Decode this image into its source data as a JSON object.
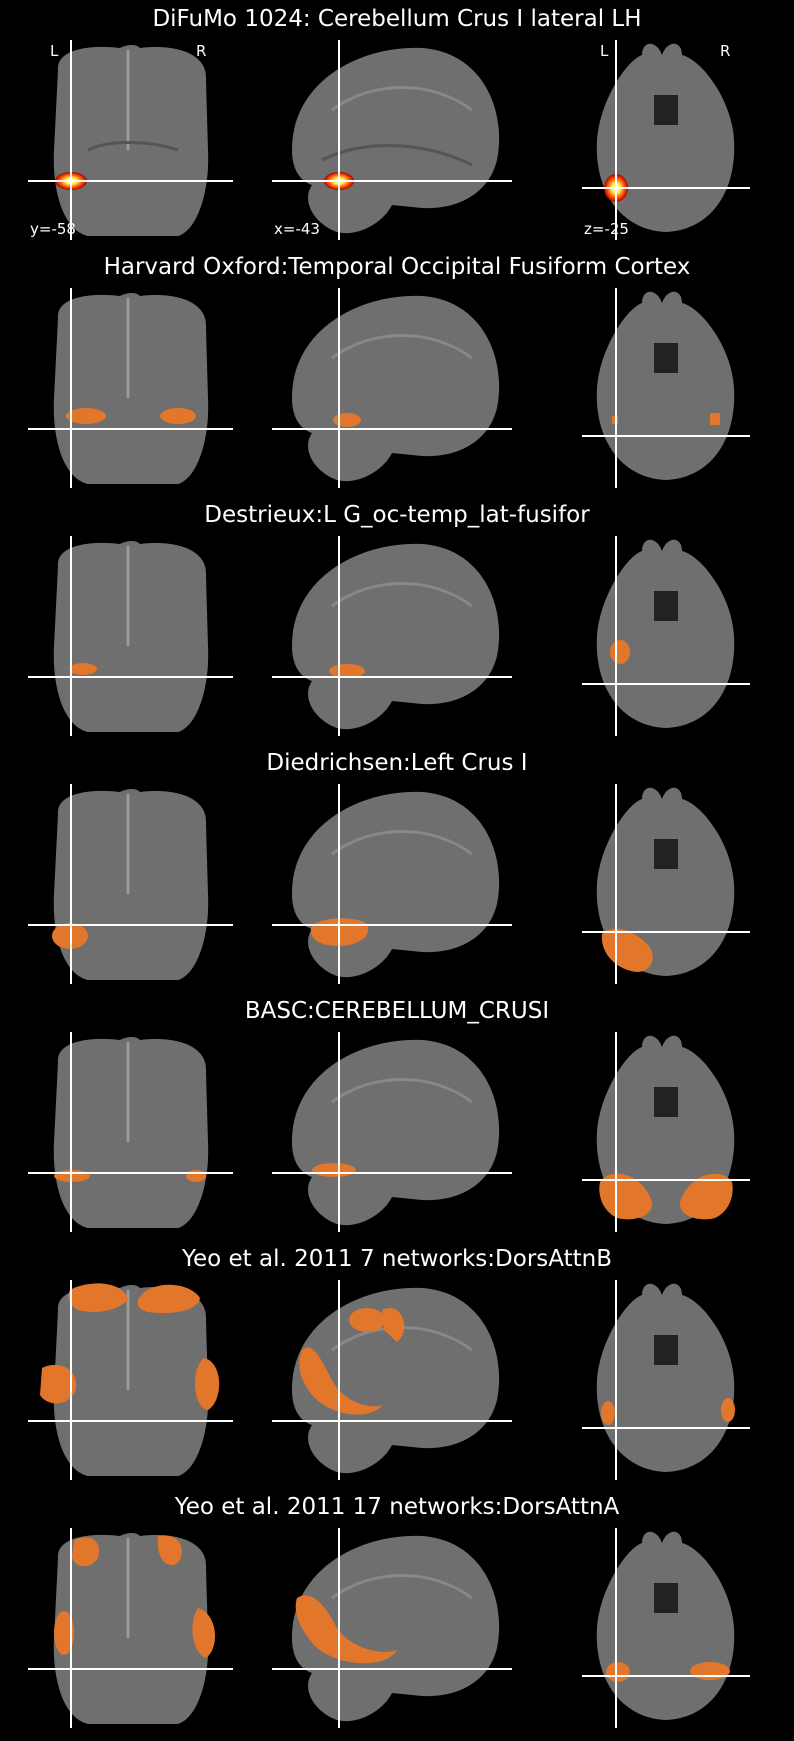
{
  "colors": {
    "background": "#000000",
    "overlay": "#e2762b",
    "crosshair": "#ffffff"
  },
  "labels": {
    "left": "L",
    "right": "R"
  },
  "panels": [
    {
      "title": "DiFuMo 1024: Cerebellum Crus I lateral LH",
      "coords": {
        "coronal": "y=-58",
        "sagittal": "x=-43",
        "axial": "z=-25"
      },
      "style": "hot"
    },
    {
      "title": "Harvard Oxford:Temporal Occipital Fusiform Cortex",
      "style": "overlay"
    },
    {
      "title": "Destrieux:L G_oc-temp_lat-fusifor",
      "style": "overlay"
    },
    {
      "title": "Diedrichsen:Left Crus I",
      "style": "overlay"
    },
    {
      "title": "BASC:CEREBELLUM_CRUSI",
      "style": "overlay"
    },
    {
      "title": "Yeo et al. 2011 7 networks:DorsAttnB",
      "style": "overlay"
    },
    {
      "title": "Yeo et al. 2011 17 networks:DorsAttnA",
      "style": "overlay"
    }
  ]
}
